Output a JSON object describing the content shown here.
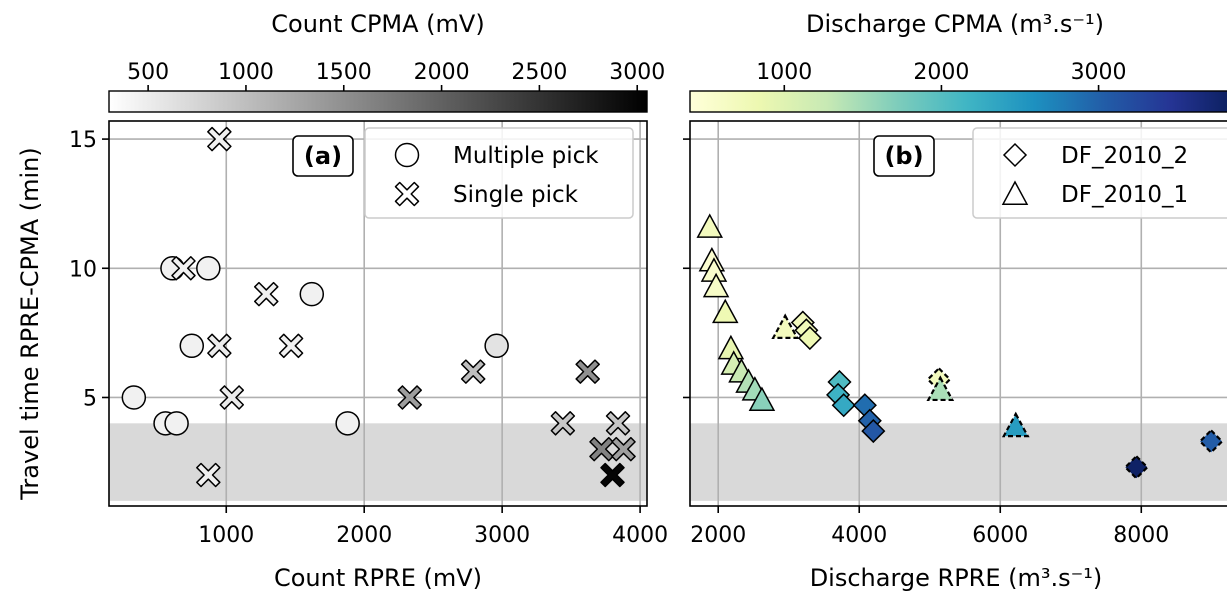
{
  "chart_data": [
    {
      "panel_label": "(a)",
      "type": "scatter",
      "xlabel": "Count RPRE (mV)",
      "ylabel": "Travel time RPRE-CPMA (min)",
      "xlim": [
        150,
        4050
      ],
      "ylim": [
        0.8,
        15.7
      ],
      "xticks": [
        "1000",
        "2000",
        "3000",
        "4000"
      ],
      "yticks": [
        "5",
        "10",
        "15"
      ],
      "grid": true,
      "shaded_band": [
        1,
        4
      ],
      "colorbar": {
        "label": "Count CPMA (mV)",
        "ticks": [
          "500",
          "1000",
          "1500",
          "2000",
          "2500",
          "3000"
        ],
        "range": [
          300,
          3050
        ],
        "colormap": "Greys",
        "colors": [
          "#ffffff",
          "#000000"
        ]
      },
      "legend_position": "top-right",
      "series": [
        {
          "name": "Multiple pick",
          "marker": "circle",
          "points": [
            {
              "x": 330,
              "y": 5,
              "c": 450
            },
            {
              "x": 560,
              "y": 4,
              "c": 450
            },
            {
              "x": 640,
              "y": 4,
              "c": 450
            },
            {
              "x": 610,
              "y": 10,
              "c": 450
            },
            {
              "x": 870,
              "y": 10,
              "c": 450
            },
            {
              "x": 750,
              "y": 7,
              "c": 450
            },
            {
              "x": 1620,
              "y": 9,
              "c": 450
            },
            {
              "x": 1880,
              "y": 4,
              "c": 450
            },
            {
              "x": 2960,
              "y": 7,
              "c": 600
            }
          ]
        },
        {
          "name": "Single pick",
          "marker": "x",
          "points": [
            {
              "x": 950,
              "y": 15,
              "c": 450
            },
            {
              "x": 690,
              "y": 10,
              "c": 450
            },
            {
              "x": 950,
              "y": 7,
              "c": 500
            },
            {
              "x": 1040,
              "y": 5,
              "c": 500
            },
            {
              "x": 870,
              "y": 2,
              "c": 450
            },
            {
              "x": 1290,
              "y": 9,
              "c": 450
            },
            {
              "x": 1470,
              "y": 7,
              "c": 450
            },
            {
              "x": 2330,
              "y": 5,
              "c": 1350
            },
            {
              "x": 2790,
              "y": 6,
              "c": 1000
            },
            {
              "x": 3440,
              "y": 4,
              "c": 900
            },
            {
              "x": 3620,
              "y": 6,
              "c": 1500
            },
            {
              "x": 3840,
              "y": 4,
              "c": 900
            },
            {
              "x": 3720,
              "y": 3,
              "c": 1650
            },
            {
              "x": 3880,
              "y": 3,
              "c": 1350
            },
            {
              "x": 3800,
              "y": 2,
              "c": 3000
            }
          ]
        }
      ]
    },
    {
      "panel_label": "(b)",
      "type": "scatter",
      "xlabel": "Discharge RPRE (m³.s⁻¹)",
      "xlim": [
        1600,
        9400
      ],
      "ylim": [
        0.8,
        15.7
      ],
      "xticks": [
        "2000",
        "4000",
        "6000",
        "8000"
      ],
      "grid": true,
      "shaded_band": [
        1,
        4
      ],
      "colorbar": {
        "label": "Discharge CPMA (m³.s⁻¹)",
        "ticks": [
          "1000",
          "2000",
          "3000"
        ],
        "range": [
          400,
          3900
        ],
        "colormap": "YlGnBu",
        "colors": [
          "#ffffd9",
          "#edf8b1",
          "#c7e9b4",
          "#7fcdbb",
          "#41b6c4",
          "#1d91c0",
          "#225ea8",
          "#253494",
          "#081d58"
        ]
      },
      "legend_position": "top-right",
      "series": [
        {
          "name": "DF_2010_2",
          "marker": "diamond",
          "points": [
            {
              "x": 3200,
              "y": 7.9,
              "c": 700,
              "dashed": false
            },
            {
              "x": 3250,
              "y": 7.6,
              "c": 750,
              "dashed": false
            },
            {
              "x": 3300,
              "y": 7.3,
              "c": 800,
              "dashed": false
            },
            {
              "x": 3720,
              "y": 5.6,
              "c": 2050,
              "dashed": false
            },
            {
              "x": 3700,
              "y": 5.1,
              "c": 2200,
              "dashed": false
            },
            {
              "x": 3780,
              "y": 4.7,
              "c": 2300,
              "dashed": false
            },
            {
              "x": 4080,
              "y": 4.7,
              "c": 2900,
              "dashed": false
            },
            {
              "x": 4150,
              "y": 4.1,
              "c": 3000,
              "dashed": false
            },
            {
              "x": 4200,
              "y": 3.7,
              "c": 3100,
              "dashed": false
            },
            {
              "x": 5130,
              "y": 5.7,
              "c": 700,
              "dashed": true
            },
            {
              "x": 7930,
              "y": 2.3,
              "c": 3800,
              "dashed": true
            },
            {
              "x": 8990,
              "y": 3.3,
              "c": 3050,
              "dashed": true
            }
          ]
        },
        {
          "name": "DF_2010_1",
          "marker": "triangle",
          "points": [
            {
              "x": 1880,
              "y": 11.6,
              "c": 700,
              "dashed": false
            },
            {
              "x": 1910,
              "y": 10.3,
              "c": 500,
              "dashed": false
            },
            {
              "x": 1940,
              "y": 9.9,
              "c": 550,
              "dashed": false
            },
            {
              "x": 1970,
              "y": 9.3,
              "c": 600,
              "dashed": false
            },
            {
              "x": 2100,
              "y": 8.3,
              "c": 800,
              "dashed": false
            },
            {
              "x": 2180,
              "y": 6.9,
              "c": 900,
              "dashed": false
            },
            {
              "x": 2220,
              "y": 6.3,
              "c": 1100,
              "dashed": false
            },
            {
              "x": 2330,
              "y": 6.0,
              "c": 1250,
              "dashed": false
            },
            {
              "x": 2430,
              "y": 5.6,
              "c": 1400,
              "dashed": false
            },
            {
              "x": 2520,
              "y": 5.3,
              "c": 1500,
              "dashed": false
            },
            {
              "x": 2620,
              "y": 4.9,
              "c": 1650,
              "dashed": false
            },
            {
              "x": 2950,
              "y": 7.7,
              "c": 700,
              "dashed": true
            },
            {
              "x": 5150,
              "y": 5.3,
              "c": 1450,
              "dashed": true
            },
            {
              "x": 6220,
              "y": 3.9,
              "c": 2450,
              "dashed": true
            }
          ]
        }
      ]
    }
  ]
}
